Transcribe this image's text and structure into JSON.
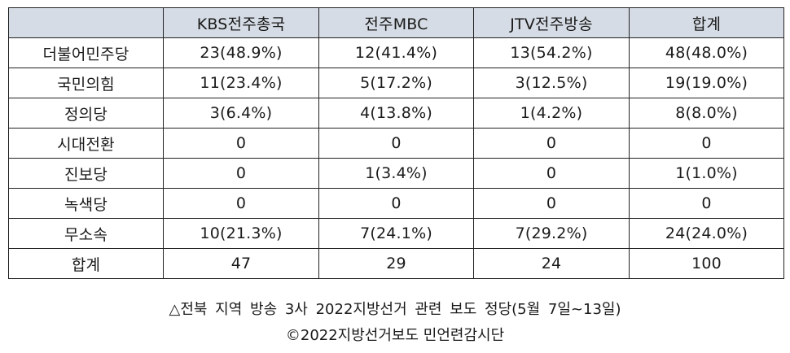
{
  "table": {
    "columns": [
      "",
      "KBS전주총국",
      "전주MBC",
      "JTV전주방송",
      "합계"
    ],
    "rows": [
      {
        "label": "더불어민주당",
        "values": [
          "23(48.9%)",
          "12(41.4%)",
          "13(54.2%)",
          "48(48.0%)"
        ]
      },
      {
        "label": "국민의힘",
        "values": [
          "11(23.4%)",
          "5(17.2%)",
          "3(12.5%)",
          "19(19.0%)"
        ]
      },
      {
        "label": "정의당",
        "values": [
          "3(6.4%)",
          "4(13.8%)",
          "1(4.2%)",
          "8(8.0%)"
        ]
      },
      {
        "label": "시대전환",
        "values": [
          "0",
          "0",
          "0",
          "0"
        ]
      },
      {
        "label": "진보당",
        "values": [
          "0",
          "1(3.4%)",
          "0",
          "1(1.0%)"
        ]
      },
      {
        "label": "녹색당",
        "values": [
          "0",
          "0",
          "0",
          "0"
        ]
      },
      {
        "label": "무소속",
        "values": [
          "10(21.3%)",
          "7(24.1%)",
          "7(29.2%)",
          "24(24.0%)"
        ]
      },
      {
        "label": "합계",
        "values": [
          "47",
          "29",
          "24",
          "100"
        ]
      }
    ]
  },
  "caption": {
    "line1": "△전북 지역 방송 3사 2022지방선거 관련 보도 정당(5월 7일~13일)",
    "line2": "©2022지방선거보도 민언련감시단"
  },
  "colors": {
    "header_bg": "#d6dce5",
    "border": "#222222",
    "text": "#1a1a1a"
  }
}
